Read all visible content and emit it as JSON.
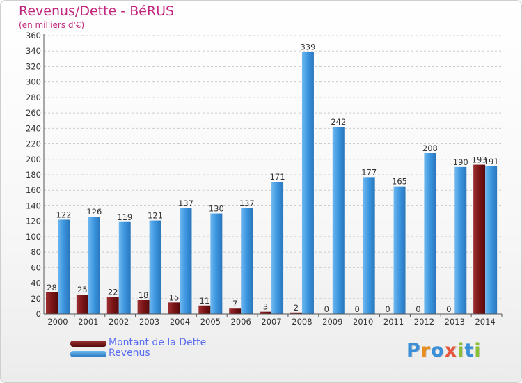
{
  "colors": {
    "title": "#c0267d",
    "dette": "#7b1416",
    "revenus": "#3b95de",
    "legend_text": "#5a6ef0",
    "axis_text": "#333333"
  },
  "logo": {
    "text": "Proxiti",
    "letters": [
      "P",
      "r",
      "o",
      "x",
      "i",
      "t",
      "i"
    ],
    "colors": [
      "#3a8fd8",
      "#e88d22",
      "#3a8fd8",
      "#e8543a",
      "#8bbf36",
      "#3a8fd8",
      "#8bbf36"
    ]
  },
  "chart_data": {
    "type": "bar",
    "title": "Revenus/Dette - BéRUS",
    "subtitle": "(en milliers d'€)",
    "categories": [
      "2000",
      "2001",
      "2002",
      "2003",
      "2004",
      "2005",
      "2006",
      "2007",
      "2008",
      "2009",
      "2010",
      "2011",
      "2012",
      "2013",
      "2014"
    ],
    "series": [
      {
        "name": "Montant de la Dette",
        "color": "#7b1416",
        "values": [
          28,
          25,
          22,
          18,
          15,
          11,
          7,
          3,
          2,
          0,
          0,
          0,
          0,
          0,
          193
        ]
      },
      {
        "name": "Revenus",
        "color": "#3b95de",
        "values": [
          122,
          126,
          119,
          121,
          137,
          130,
          137,
          171,
          339,
          242,
          177,
          165,
          208,
          190,
          191
        ]
      }
    ],
    "ylim": [
      0,
      360
    ],
    "yticks": [
      0,
      20,
      40,
      60,
      80,
      100,
      120,
      140,
      160,
      180,
      200,
      220,
      240,
      260,
      280,
      300,
      320,
      340,
      360
    ],
    "grid": "horizontal dashed",
    "legend": "bottom-left"
  }
}
